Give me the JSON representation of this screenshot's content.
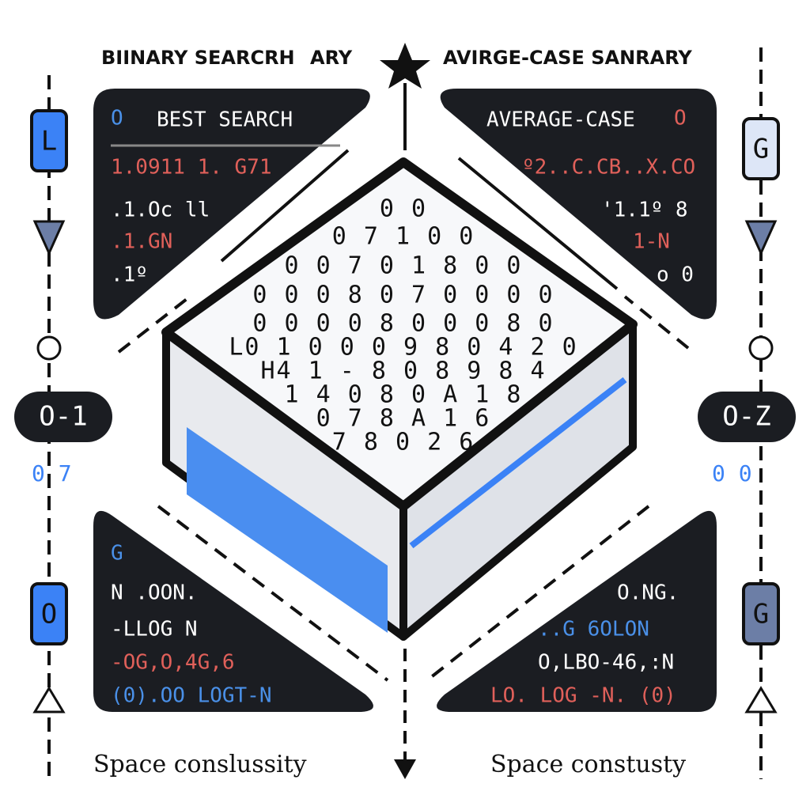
{
  "header": {
    "left_title": "BIINARY SEARCRH",
    "left_suffix": "ARY",
    "right_title": "AVIRGE-CASE SANRARY"
  },
  "panels": [
    {
      "badge": "O",
      "title": "BEST SEARCH",
      "lines": [
        "1.0911 1. G71",
        ".1.Oc  ll",
        ".1.GN",
        ".1º"
      ]
    },
    {
      "title": "AVERAGE-CASE",
      "badge": "O",
      "lines": [
        "º2..C.CB..X.CO",
        "'1.1º 8",
        "1-N",
        "o 0"
      ]
    },
    {
      "badge": "G",
      "lines": [
        "N .OON.",
        "-LLOG N",
        "-OG,O,4G,6",
        "(0).OO LOGT-N"
      ]
    },
    {
      "lines": [
        "O.NG.",
        "..G 6OLON",
        "O,LBO-46,:N",
        "LO. LOG -N. (0)"
      ]
    }
  ],
  "side_labels": {
    "left_top": "L",
    "right_top": "G",
    "left_bottom": "O",
    "right_bottom": "G",
    "left_mid": "O-1",
    "right_mid": "O-Z",
    "left_digits": "0 7",
    "right_digits": "0 0"
  },
  "grid_rows": [
    "0 0",
    "0 7 1 0 0",
    "0 0 7 0 1 8 0 0",
    "0 0 0 8 0 7 0 0 0 0",
    "0 0 0 0 8 0 0 0 8 0",
    "L0 1 0 0 0 9 8 0 4 2 0",
    "H4 1 - 8 0 8 9 8 4",
    "1 4 0 8 0 A 1 8",
    "0 7 8 A 1 6",
    "7 8 0 2 6"
  ],
  "footer": {
    "left": "Space conslussity",
    "right": "Space constusty"
  }
}
